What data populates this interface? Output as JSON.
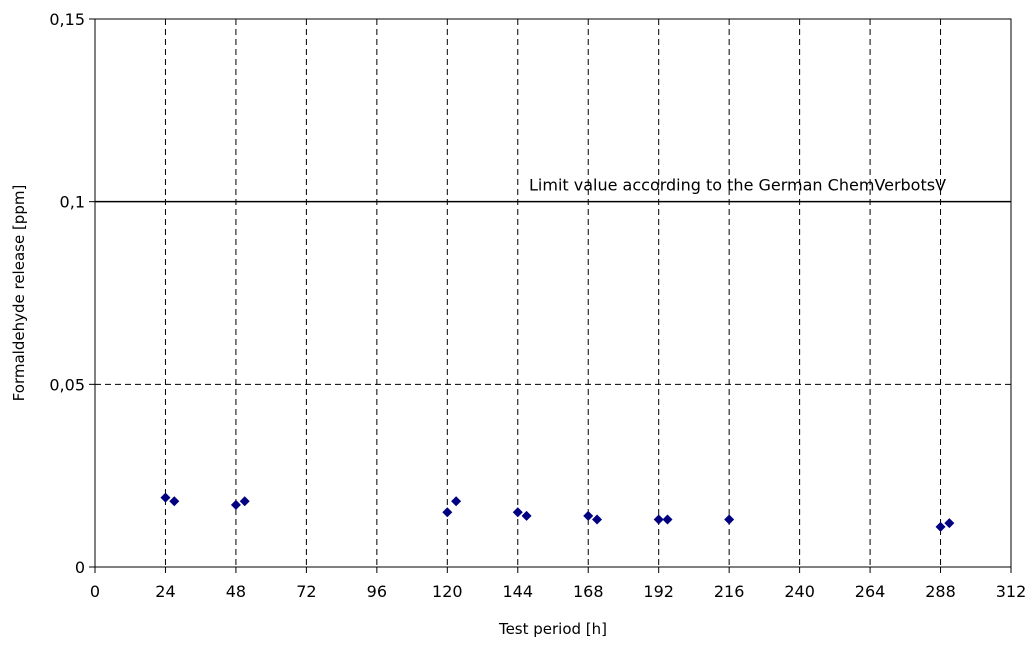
{
  "chart_data": {
    "type": "scatter",
    "title": "",
    "xlabel": "Test period [h]",
    "ylabel": "Formaldehyde release [ppm]",
    "xlim": [
      0,
      312
    ],
    "ylim": [
      0,
      0.15
    ],
    "x_ticks": [
      0,
      24,
      48,
      72,
      96,
      120,
      144,
      168,
      192,
      216,
      240,
      264,
      288,
      312
    ],
    "x_tick_labels": [
      "0",
      "24",
      "48",
      "72",
      "96",
      "120",
      "144",
      "168",
      "192",
      "216",
      "240",
      "264",
      "288",
      "312"
    ],
    "y_ticks": [
      0,
      0.05,
      0.1,
      0.15
    ],
    "y_tick_labels": [
      "0",
      "0,05",
      "0,1",
      "0,15"
    ],
    "grid": "dashed",
    "marker": "diamond",
    "marker_color": "#000080",
    "series": [
      {
        "points": [
          {
            "x": 24,
            "y": 0.019
          },
          {
            "x": 27,
            "y": 0.018
          },
          {
            "x": 48,
            "y": 0.017
          },
          {
            "x": 51,
            "y": 0.018
          },
          {
            "x": 120,
            "y": 0.015
          },
          {
            "x": 123,
            "y": 0.018
          },
          {
            "x": 144,
            "y": 0.015
          },
          {
            "x": 147,
            "y": 0.014
          },
          {
            "x": 168,
            "y": 0.014
          },
          {
            "x": 171,
            "y": 0.013
          },
          {
            "x": 192,
            "y": 0.013
          },
          {
            "x": 195,
            "y": 0.013
          },
          {
            "x": 216,
            "y": 0.013
          },
          {
            "x": 288,
            "y": 0.011
          },
          {
            "x": 291,
            "y": 0.012
          }
        ]
      }
    ],
    "reference_line": {
      "y": 0.1,
      "label": "Limit value according to the German ChemVerbotsV",
      "color": "#000000"
    }
  }
}
